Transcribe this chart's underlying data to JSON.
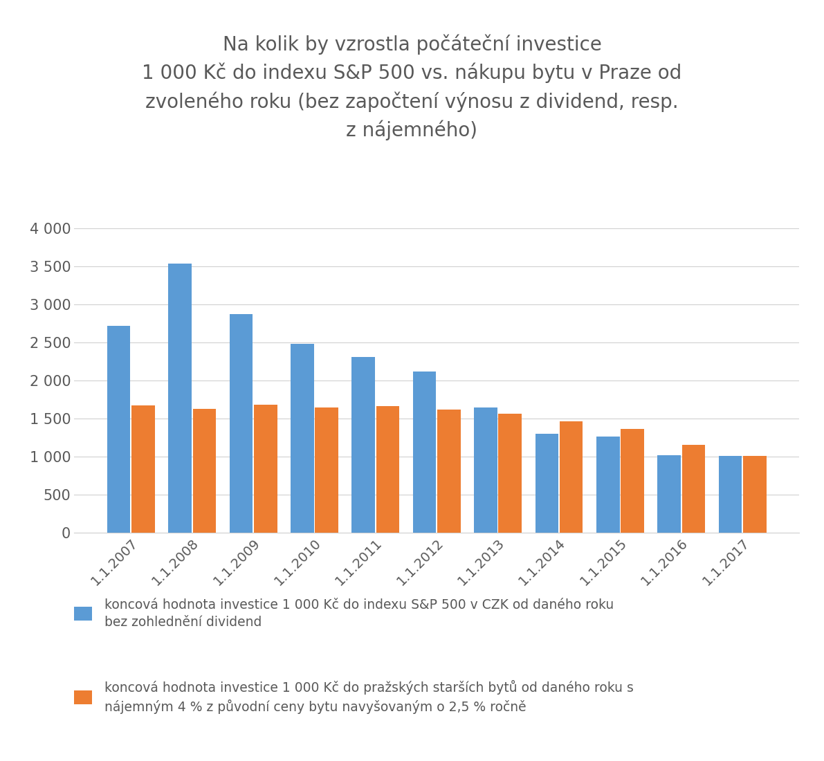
{
  "categories": [
    "1.1.2007",
    "1.1.2008",
    "1.1.2009",
    "1.1.2010",
    "1.1.2011",
    "1.1.2012",
    "1.1.2013",
    "1.1.2014",
    "1.1.2015",
    "1.1.2016",
    "1.1.2017"
  ],
  "sp500_values": [
    2720,
    3540,
    2870,
    2480,
    2310,
    2120,
    1650,
    1300,
    1260,
    1020,
    1010
  ],
  "byty_values": [
    1670,
    1630,
    1680,
    1650,
    1660,
    1620,
    1560,
    1460,
    1360,
    1155,
    1010
  ],
  "color_sp500": "#5B9BD5",
  "color_byty": "#ED7D31",
  "title_line1": "Na kolik by vzrostla počáteční investice",
  "title_line2": "1 000 Kč do indexu S&P 500 vs. nákupu bytu v Praze od",
  "title_line3": "zvoleného roku (bez započtení výnosu z dividend, resp.",
  "title_line4": "z nájemného)",
  "title_fontsize": 20,
  "title_color": "#595959",
  "legend1_line1": "koncová hodnota investice 1 000 Kč do indexu S&P 500 v CZK od daného roku",
  "legend1_line2": "bez zohlednění dividend",
  "legend2_line1": "koncová hodnota investice 1 000 Kč do pražských starších bytů od daného roku s",
  "legend2_line2": "nájemným 4 % z původní ceny bytu navyšovaným o 2,5 % ročně",
  "ylim": [
    0,
    4000
  ],
  "yticks": [
    0,
    500,
    1000,
    1500,
    2000,
    2500,
    3000,
    3500,
    4000
  ],
  "ytick_labels": [
    "0",
    "500",
    "1 000",
    "1 500",
    "2 000",
    "2 500",
    "3 000",
    "3 500",
    "4 000"
  ],
  "background_color": "#FFFFFF",
  "grid_color": "#D0D0D0",
  "tick_color": "#595959",
  "bar_width": 0.38,
  "bar_gap": 0.02
}
